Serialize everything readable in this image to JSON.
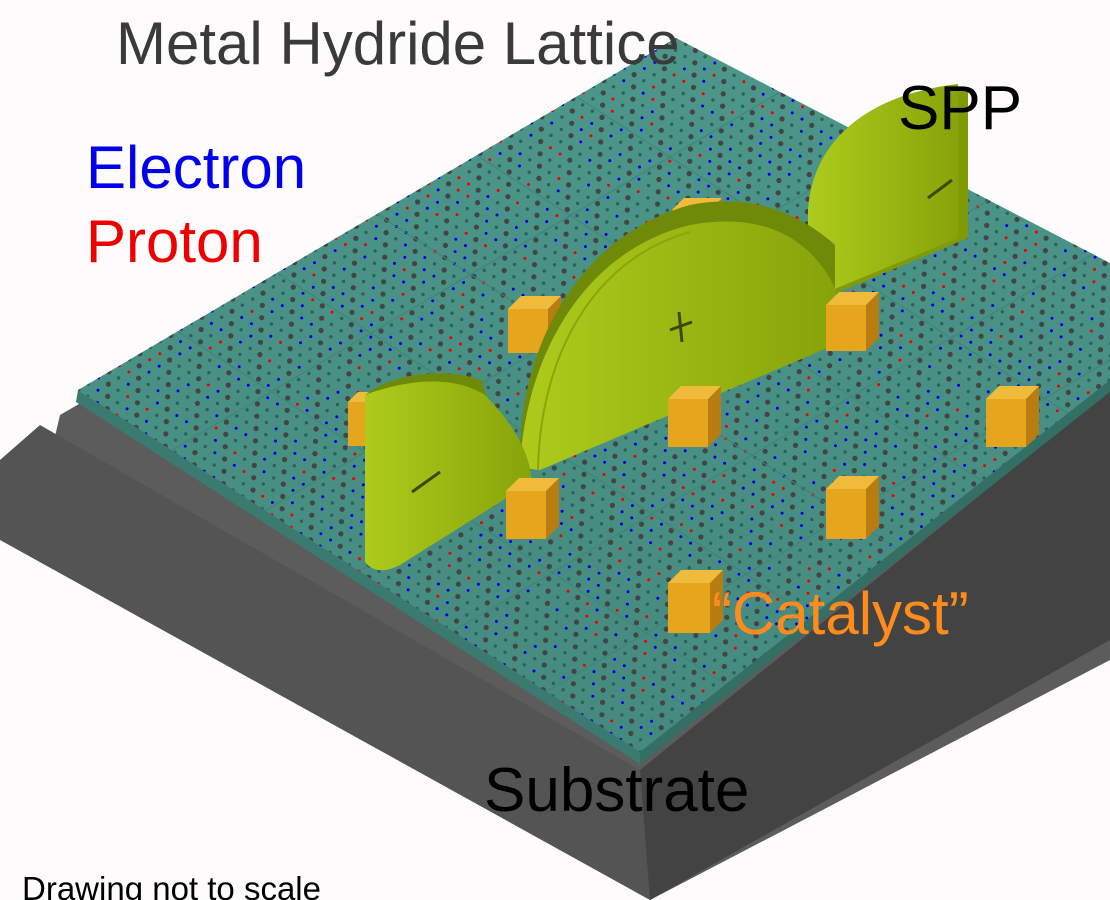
{
  "diagram": {
    "title": "Metal Hydride Lattice",
    "labels": {
      "spp": "SPP",
      "electron": "Electron",
      "proton": "Proton",
      "catalyst": "“Catalyst”",
      "substrate": "Substrate",
      "note": "Drawing not to scale"
    },
    "polarity": {
      "positive": "+",
      "negative": "−"
    },
    "colors": {
      "background": "#fdfbfb",
      "substrate_front": "#585858",
      "substrate_side": "#3f3f3f",
      "lattice_top": "#4a9185",
      "lattice_edge": "#3b7d72",
      "electron": "#0000ee",
      "proton": "#ee0000",
      "lattice_atom": "#444444",
      "catalyst_face": "#e5a51c",
      "catalyst_side": "#b97c10",
      "spp_wave": "#9cbb10",
      "spp_wave_side": "#6f8a08"
    }
  }
}
